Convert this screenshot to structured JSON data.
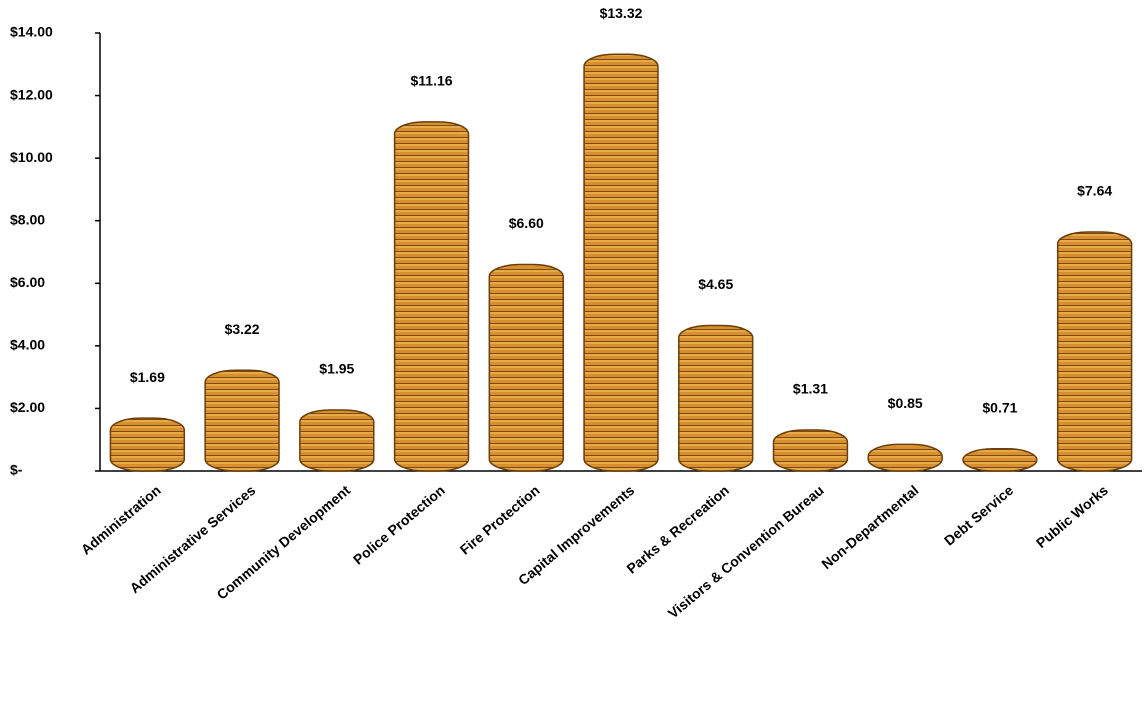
{
  "chart_data": {
    "type": "bar",
    "categories": [
      "Administration",
      "Administrative Services",
      "Community Development",
      "Police Protection",
      "Fire Protection",
      "Capital Improvements",
      "Parks & Recreation",
      "Visitors & Convention Bureau",
      "Non-Departmental",
      "Debt Service",
      "Public Works"
    ],
    "values": [
      1.69,
      3.22,
      1.95,
      11.16,
      6.6,
      13.32,
      4.65,
      1.31,
      0.85,
      0.71,
      7.64
    ],
    "value_labels": [
      "$1.69",
      "$3.22",
      "$1.95",
      "$11.16",
      "$6.60",
      "$13.32",
      "$4.65",
      "$1.31",
      "$0.85",
      "$0.71",
      "$7.64"
    ],
    "color": "#d98f2b",
    "ylim": [
      0,
      14
    ],
    "yticks": [
      {
        "value": 0,
        "label": "$-"
      },
      {
        "value": 2,
        "label": "$2.00"
      },
      {
        "value": 4,
        "label": "$4.00"
      },
      {
        "value": 6,
        "label": "$6.00"
      },
      {
        "value": 8,
        "label": "$8.00"
      },
      {
        "value": 10,
        "label": "$10.00"
      },
      {
        "value": 12,
        "label": "$12.00"
      },
      {
        "value": 14,
        "label": "$14.00"
      }
    ],
    "grid": false
  }
}
